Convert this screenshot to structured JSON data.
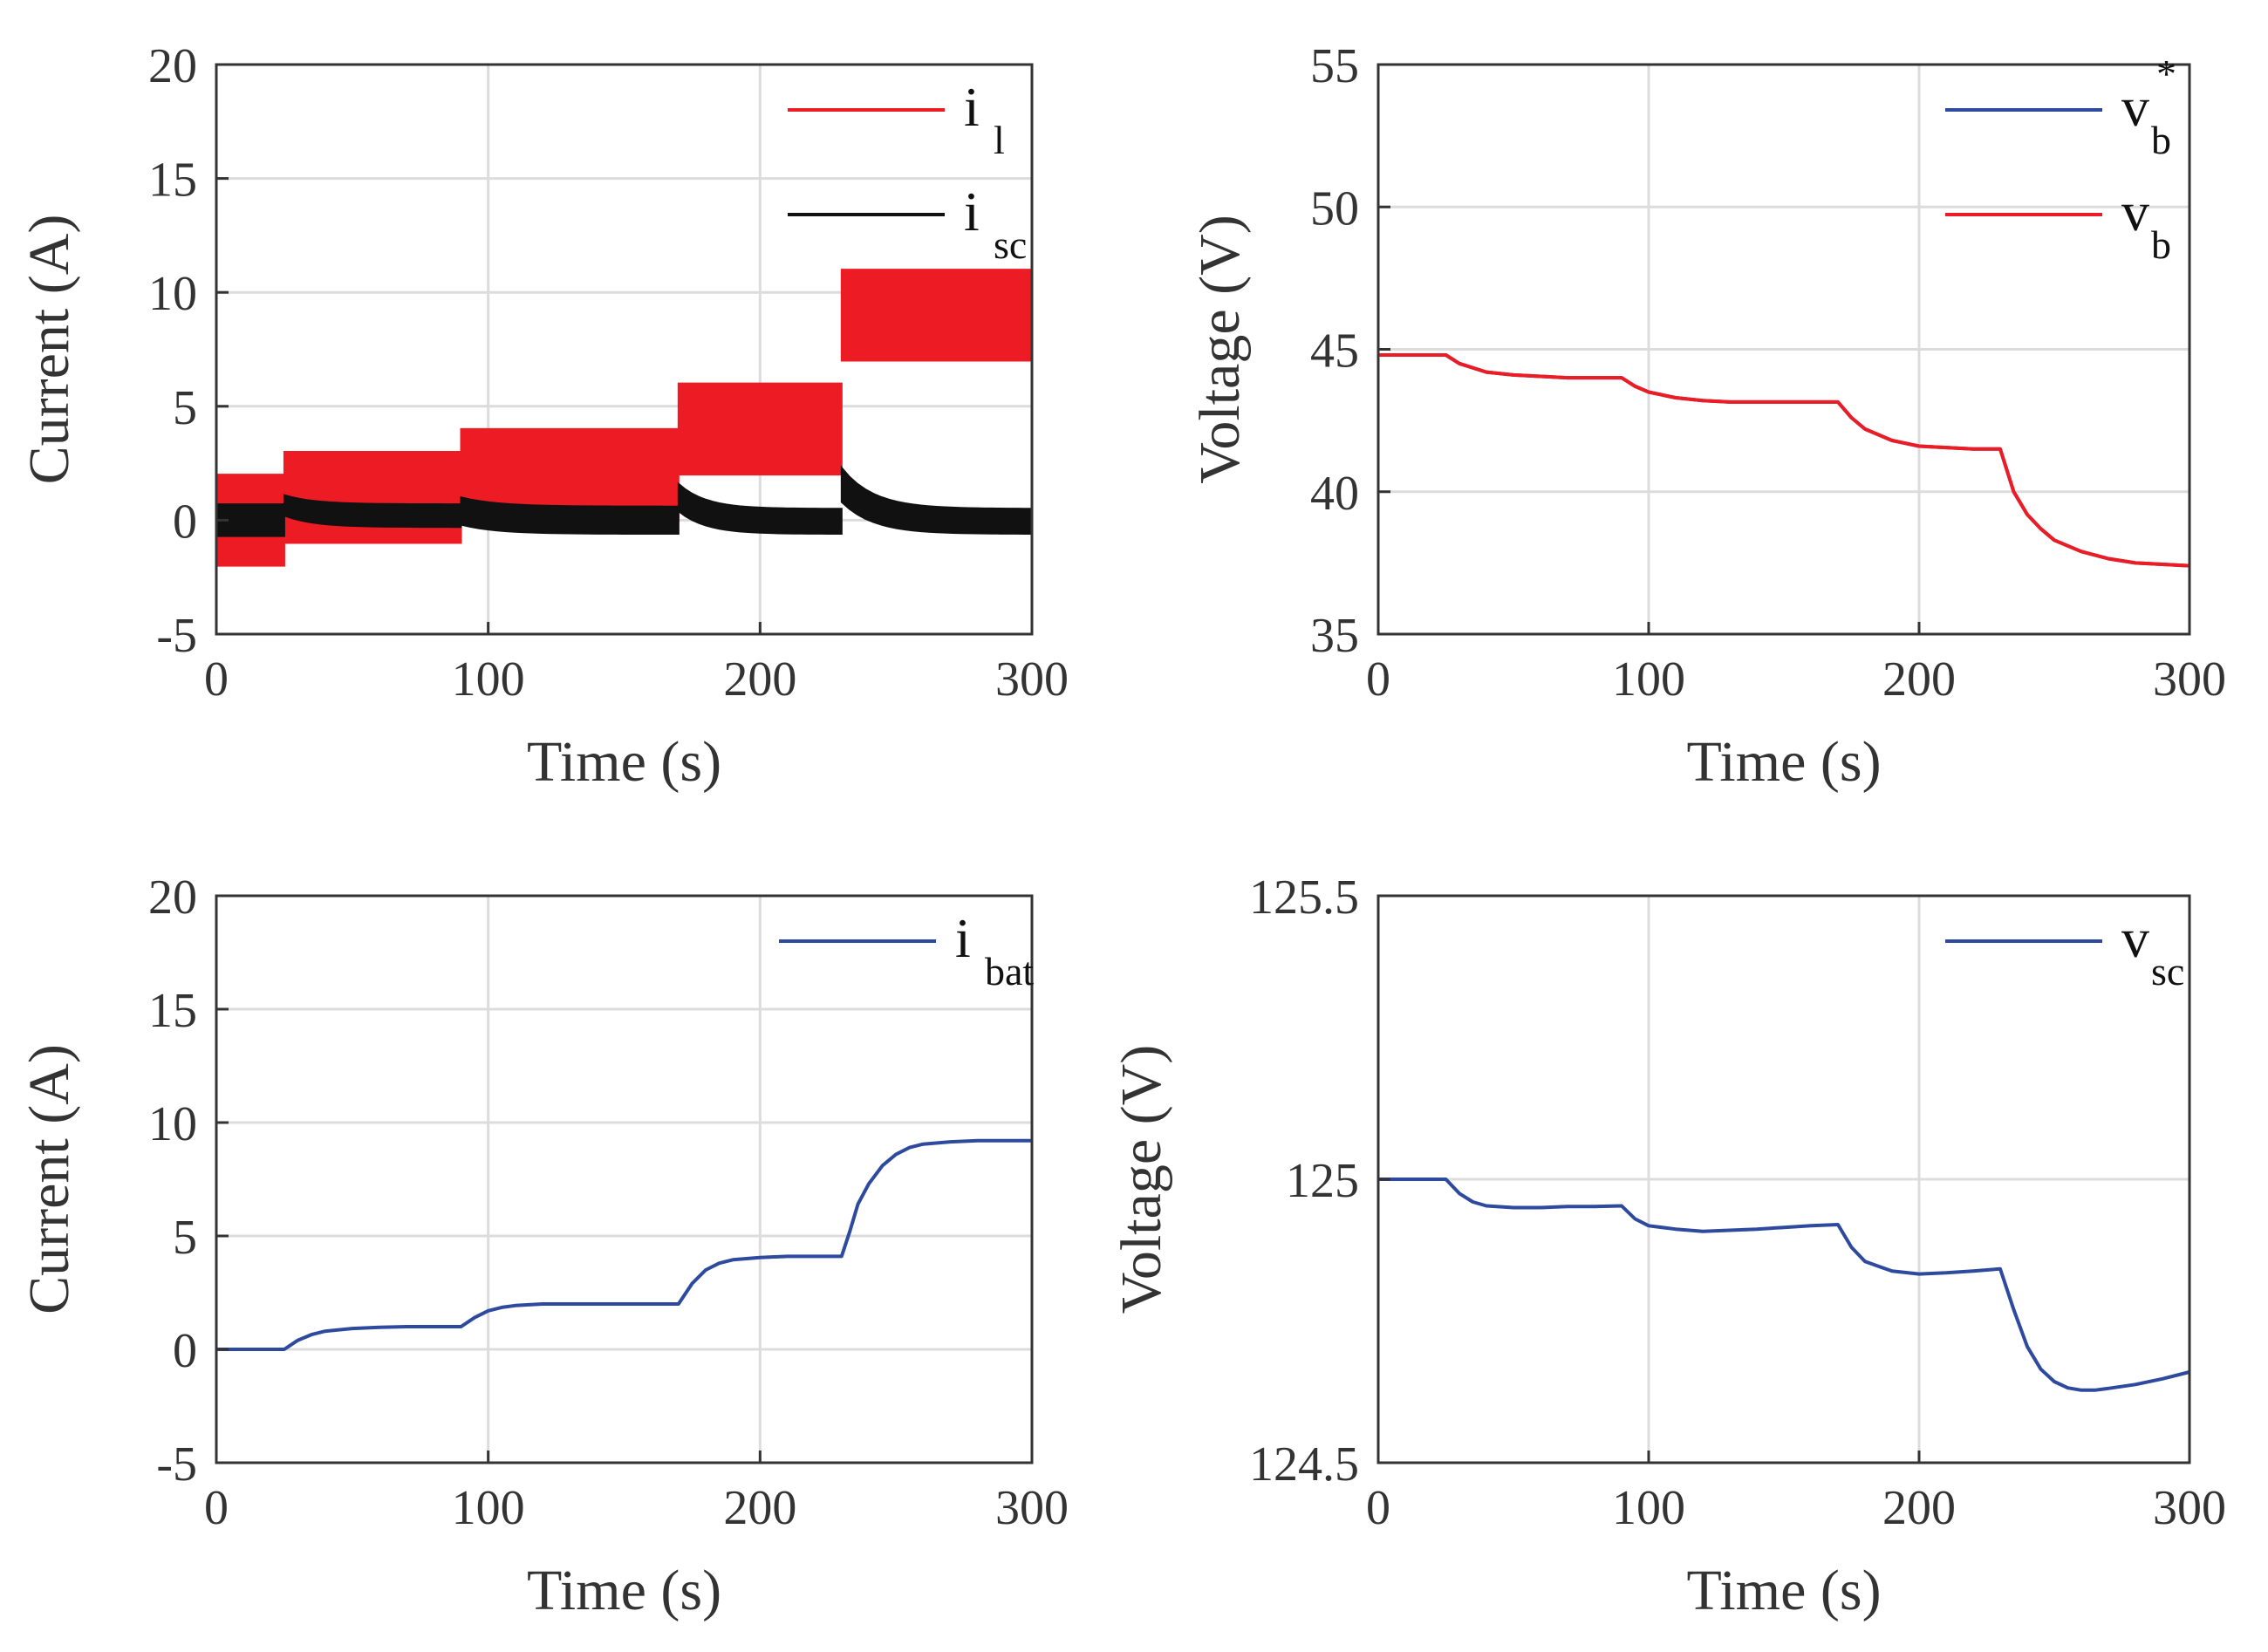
{
  "chart_data": [
    {
      "type": "line",
      "panel": "top-left",
      "xlabel": "Time (s)",
      "ylabel": "Current (A)",
      "xlim": [
        0,
        300
      ],
      "ylim": [
        -5,
        20
      ],
      "xticks": [
        0,
        100,
        200,
        300
      ],
      "yticks": [
        -5,
        0,
        5,
        10,
        15,
        20
      ],
      "grid": true,
      "legend_position": "top-right",
      "band_series": [
        {
          "name": "i",
          "sub": "l",
          "sup": "",
          "color": "#ed1c24",
          "segments": [
            {
              "x": [
                0,
                25
              ],
              "lo": -2,
              "hi": 2
            },
            {
              "x": [
                25,
                90
              ],
              "lo": -1,
              "hi": 3
            },
            {
              "x": [
                90,
                170
              ],
              "lo": 0,
              "hi": 4
            },
            {
              "x": [
                170,
                230
              ],
              "lo": 2,
              "hi": 6
            },
            {
              "x": [
                230,
                300
              ],
              "lo": 7,
              "hi": 11
            }
          ]
        },
        {
          "name": "i",
          "sub": "sc",
          "sup": "",
          "color": "#111111",
          "segments": [
            {
              "x": [
                0,
                25
              ],
              "lo0": -0.7,
              "hi0": 0.7,
              "lo1": -0.7,
              "hi1": 0.7
            },
            {
              "x": [
                25,
                90
              ],
              "lo0": 0.2,
              "hi0": 1.1,
              "lo1": -0.3,
              "hi1": 0.7
            },
            {
              "x": [
                90,
                170
              ],
              "lo0": -0.2,
              "hi0": 1.0,
              "lo1": -0.6,
              "hi1": 0.6
            },
            {
              "x": [
                170,
                230
              ],
              "lo0": 0.4,
              "hi0": 1.6,
              "lo1": -0.6,
              "hi1": 0.5
            },
            {
              "x": [
                230,
                300
              ],
              "lo0": 0.8,
              "hi0": 2.3,
              "lo1": -0.6,
              "hi1": 0.5
            }
          ]
        }
      ],
      "series": []
    },
    {
      "type": "line",
      "panel": "top-right",
      "xlabel": "Time (s)",
      "ylabel": "Voltage (V)",
      "xlim": [
        0,
        300
      ],
      "ylim": [
        35,
        55
      ],
      "xticks": [
        0,
        100,
        200,
        300
      ],
      "yticks": [
        35,
        40,
        45,
        50,
        55
      ],
      "grid": true,
      "legend_position": "top-right",
      "band_series": [],
      "series": [
        {
          "name": "v",
          "sub": "b",
          "sup": "*",
          "color": "#2e4a9e",
          "x": [
            0,
            25,
            30,
            40,
            50,
            60,
            70,
            80,
            90,
            95,
            100,
            110,
            120,
            130,
            140,
            150,
            160,
            170,
            175,
            180,
            190,
            200,
            210,
            220,
            230,
            235,
            240,
            245,
            250,
            260,
            270,
            280,
            290,
            300
          ],
          "y": [
            44.8,
            44.8,
            44.5,
            44.2,
            44.1,
            44.05,
            44.0,
            44.0,
            44.0,
            43.7,
            43.5,
            43.3,
            43.2,
            43.15,
            43.15,
            43.15,
            43.15,
            43.15,
            42.6,
            42.2,
            41.8,
            41.6,
            41.55,
            41.5,
            41.5,
            40.0,
            39.2,
            38.7,
            38.3,
            37.9,
            37.65,
            37.5,
            37.45,
            37.4
          ]
        },
        {
          "name": "v",
          "sub": "b",
          "sup": "",
          "color": "#ed1c24",
          "x": [
            0,
            25,
            30,
            40,
            50,
            60,
            70,
            80,
            90,
            95,
            100,
            110,
            120,
            130,
            140,
            150,
            160,
            170,
            175,
            180,
            190,
            200,
            210,
            220,
            230,
            235,
            240,
            245,
            250,
            260,
            270,
            280,
            290,
            300
          ],
          "y": [
            44.8,
            44.8,
            44.5,
            44.2,
            44.1,
            44.05,
            44.0,
            44.0,
            44.0,
            43.7,
            43.5,
            43.3,
            43.2,
            43.15,
            43.15,
            43.15,
            43.15,
            43.15,
            42.6,
            42.2,
            41.8,
            41.6,
            41.55,
            41.5,
            41.5,
            40.0,
            39.2,
            38.7,
            38.3,
            37.9,
            37.65,
            37.5,
            37.45,
            37.4
          ]
        }
      ]
    },
    {
      "type": "line",
      "panel": "bottom-left",
      "xlabel": "Time (s)",
      "ylabel": "Current (A)",
      "xlim": [
        0,
        300
      ],
      "ylim": [
        -5,
        20
      ],
      "xticks": [
        0,
        100,
        200,
        300
      ],
      "yticks": [
        -5,
        0,
        5,
        10,
        15,
        20
      ],
      "grid": true,
      "legend_position": "top-right",
      "band_series": [],
      "series": [
        {
          "name": "i",
          "sub": "bat",
          "sup": "",
          "color": "#2e4a9e",
          "x": [
            0,
            25,
            30,
            35,
            40,
            50,
            60,
            70,
            80,
            90,
            95,
            100,
            105,
            110,
            120,
            130,
            140,
            150,
            160,
            170,
            175,
            180,
            185,
            190,
            200,
            210,
            220,
            230,
            233,
            236,
            240,
            245,
            250,
            255,
            260,
            270,
            280,
            290,
            300
          ],
          "y": [
            0,
            0,
            0.4,
            0.65,
            0.8,
            0.92,
            0.97,
            1.0,
            1.0,
            1.0,
            1.4,
            1.7,
            1.85,
            1.93,
            2.0,
            2.0,
            2.0,
            2.0,
            2.0,
            2.0,
            2.9,
            3.5,
            3.8,
            3.95,
            4.05,
            4.1,
            4.1,
            4.1,
            5.2,
            6.4,
            7.3,
            8.1,
            8.6,
            8.9,
            9.05,
            9.15,
            9.2,
            9.2,
            9.2
          ]
        }
      ]
    },
    {
      "type": "line",
      "panel": "bottom-right",
      "xlabel": "Time (s)",
      "ylabel": "Voltage (V)",
      "xlim": [
        0,
        300
      ],
      "ylim": [
        124.5,
        125.5
      ],
      "xticks": [
        0,
        100,
        200,
        300
      ],
      "yticks": [
        124.5,
        125,
        125.5
      ],
      "grid": true,
      "legend_position": "top-right",
      "band_series": [],
      "series": [
        {
          "name": "v",
          "sub": "sc",
          "sup": "",
          "color": "#2e4a9e",
          "x": [
            0,
            25,
            30,
            35,
            40,
            50,
            60,
            70,
            80,
            90,
            95,
            100,
            110,
            120,
            130,
            140,
            150,
            160,
            170,
            175,
            180,
            190,
            200,
            210,
            220,
            230,
            235,
            240,
            245,
            250,
            255,
            260,
            265,
            270,
            280,
            290,
            300
          ],
          "y": [
            125.0,
            125.0,
            124.975,
            124.96,
            124.953,
            124.95,
            124.95,
            124.952,
            124.952,
            124.953,
            124.93,
            124.918,
            124.912,
            124.908,
            124.91,
            124.912,
            124.915,
            124.918,
            124.92,
            124.88,
            124.855,
            124.838,
            124.833,
            124.835,
            124.838,
            124.842,
            124.77,
            124.705,
            124.665,
            124.643,
            124.632,
            124.628,
            124.628,
            124.631,
            124.638,
            124.648,
            124.66
          ]
        }
      ]
    }
  ]
}
